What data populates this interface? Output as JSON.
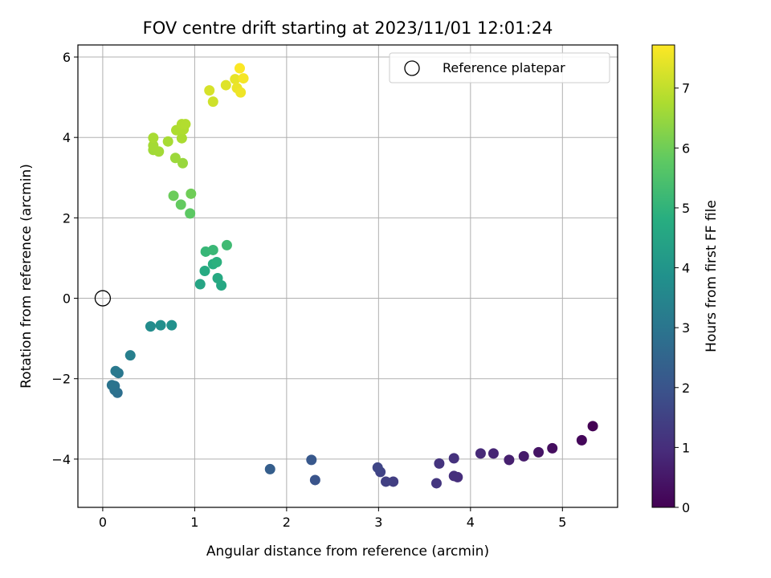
{
  "chart_data": {
    "type": "scatter",
    "title": "FOV centre drift starting at 2023/11/01 12:01:24",
    "xlabel": "Angular distance from reference (arcmin)",
    "ylabel": "Rotation from reference (arcmin)",
    "xlim": [
      -0.27,
      5.6
    ],
    "ylim": [
      -5.2,
      6.3
    ],
    "xticks": [
      0,
      1,
      2,
      3,
      4,
      5
    ],
    "yticks": [
      -4,
      -2,
      0,
      2,
      4,
      6
    ],
    "xtick_labels": [
      "0",
      "1",
      "2",
      "3",
      "4",
      "5"
    ],
    "ytick_labels": [
      "−4",
      "−2",
      "0",
      "2",
      "4",
      "6"
    ],
    "grid": true,
    "legend": {
      "placement": "top-right",
      "entries": [
        "Reference platepar"
      ]
    },
    "reference_point": {
      "x": 0,
      "y": 0
    },
    "colorbar": {
      "label": "Hours from first FF file",
      "min": 0,
      "max": 7.72,
      "ticks": [
        0,
        1,
        2,
        3,
        4,
        5,
        6,
        7
      ],
      "tick_labels": [
        "0",
        "1",
        "2",
        "3",
        "4",
        "5",
        "6",
        "7"
      ],
      "colormap": "viridis"
    },
    "points": [
      {
        "x": 5.33,
        "y": -3.18,
        "t": 0.0
      },
      {
        "x": 5.21,
        "y": -3.53,
        "t": 0.14
      },
      {
        "x": 4.89,
        "y": -3.73,
        "t": 0.28
      },
      {
        "x": 4.74,
        "y": -3.83,
        "t": 0.42
      },
      {
        "x": 4.58,
        "y": -3.93,
        "t": 0.56
      },
      {
        "x": 4.42,
        "y": -4.02,
        "t": 0.68
      },
      {
        "x": 4.25,
        "y": -3.86,
        "t": 0.8
      },
      {
        "x": 4.11,
        "y": -3.86,
        "t": 0.9
      },
      {
        "x": 3.86,
        "y": -4.45,
        "t": 1.0
      },
      {
        "x": 3.82,
        "y": -4.42,
        "t": 1.05
      },
      {
        "x": 3.82,
        "y": -3.98,
        "t": 1.1
      },
      {
        "x": 3.66,
        "y": -4.11,
        "t": 1.15
      },
      {
        "x": 3.63,
        "y": -4.6,
        "t": 1.2
      },
      {
        "x": 3.16,
        "y": -4.56,
        "t": 1.4
      },
      {
        "x": 3.08,
        "y": -4.56,
        "t": 1.45
      },
      {
        "x": 3.02,
        "y": -4.32,
        "t": 1.55
      },
      {
        "x": 2.99,
        "y": -4.21,
        "t": 1.62
      },
      {
        "x": 2.31,
        "y": -4.52,
        "t": 2.0
      },
      {
        "x": 2.27,
        "y": -4.02,
        "t": 2.1
      },
      {
        "x": 1.82,
        "y": -4.25,
        "t": 2.3
      },
      {
        "x": 0.16,
        "y": -2.35,
        "t": 2.8
      },
      {
        "x": 0.13,
        "y": -2.28,
        "t": 2.85
      },
      {
        "x": 0.13,
        "y": -2.18,
        "t": 2.9
      },
      {
        "x": 0.1,
        "y": -2.16,
        "t": 2.95
      },
      {
        "x": 0.17,
        "y": -1.86,
        "t": 3.05
      },
      {
        "x": 0.14,
        "y": -1.81,
        "t": 3.1
      },
      {
        "x": 0.3,
        "y": -1.42,
        "t": 3.3
      },
      {
        "x": 0.52,
        "y": -0.7,
        "t": 3.7
      },
      {
        "x": 0.63,
        "y": -0.67,
        "t": 3.8
      },
      {
        "x": 0.75,
        "y": -0.67,
        "t": 3.85
      },
      {
        "x": 1.06,
        "y": 0.35,
        "t": 4.5
      },
      {
        "x": 1.29,
        "y": 0.32,
        "t": 4.6
      },
      {
        "x": 1.25,
        "y": 0.5,
        "t": 4.65
      },
      {
        "x": 1.11,
        "y": 0.68,
        "t": 4.7
      },
      {
        "x": 1.2,
        "y": 0.85,
        "t": 4.8
      },
      {
        "x": 1.24,
        "y": 0.9,
        "t": 4.9
      },
      {
        "x": 1.12,
        "y": 1.16,
        "t": 5.1
      },
      {
        "x": 1.2,
        "y": 1.2,
        "t": 5.15
      },
      {
        "x": 1.35,
        "y": 1.32,
        "t": 5.25
      },
      {
        "x": 0.95,
        "y": 2.11,
        "t": 5.75
      },
      {
        "x": 0.85,
        "y": 2.33,
        "t": 5.85
      },
      {
        "x": 0.77,
        "y": 2.55,
        "t": 5.95
      },
      {
        "x": 0.96,
        "y": 2.6,
        "t": 6.0
      },
      {
        "x": 0.87,
        "y": 3.36,
        "t": 6.5
      },
      {
        "x": 0.79,
        "y": 3.49,
        "t": 6.55
      },
      {
        "x": 0.55,
        "y": 3.69,
        "t": 6.6
      },
      {
        "x": 0.61,
        "y": 3.65,
        "t": 6.63
      },
      {
        "x": 0.55,
        "y": 3.8,
        "t": 6.65
      },
      {
        "x": 0.71,
        "y": 3.9,
        "t": 6.68
      },
      {
        "x": 0.55,
        "y": 3.99,
        "t": 6.7
      },
      {
        "x": 0.86,
        "y": 3.98,
        "t": 6.72
      },
      {
        "x": 0.8,
        "y": 4.18,
        "t": 6.75
      },
      {
        "x": 0.88,
        "y": 4.2,
        "t": 6.78
      },
      {
        "x": 0.86,
        "y": 4.33,
        "t": 6.8
      },
      {
        "x": 0.9,
        "y": 4.33,
        "t": 6.82
      },
      {
        "x": 1.2,
        "y": 4.89,
        "t": 7.15
      },
      {
        "x": 1.16,
        "y": 5.17,
        "t": 7.25
      },
      {
        "x": 1.34,
        "y": 5.3,
        "t": 7.35
      },
      {
        "x": 1.44,
        "y": 5.45,
        "t": 7.45
      },
      {
        "x": 1.46,
        "y": 5.23,
        "t": 7.5
      },
      {
        "x": 1.5,
        "y": 5.12,
        "t": 7.55
      },
      {
        "x": 1.53,
        "y": 5.47,
        "t": 7.62
      },
      {
        "x": 1.49,
        "y": 5.72,
        "t": 7.7
      }
    ]
  }
}
